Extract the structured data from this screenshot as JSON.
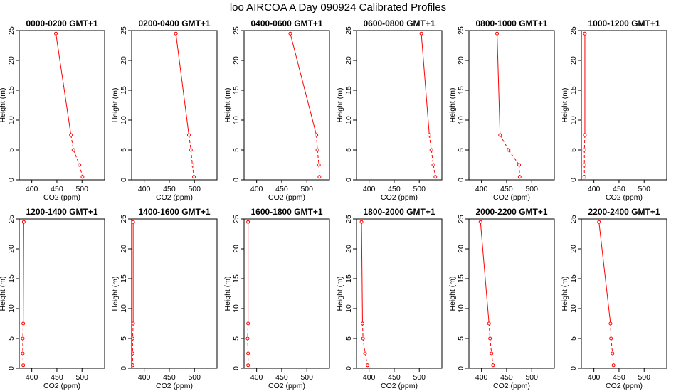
{
  "page_title": "loo AIRCOA A  Day 090924  Calibrated Profiles",
  "colors": {
    "series": "#ff0000",
    "axis": "#000000"
  },
  "chart_data": [
    {
      "type": "line",
      "title": "0000-0200 GMT+1",
      "xlabel": "CO2 (ppm)",
      "ylabel": "Height (m)",
      "xlim": [
        375,
        545
      ],
      "ylim": [
        0,
        25
      ],
      "xticks": [
        400,
        450,
        500
      ],
      "yticks": [
        0,
        5,
        10,
        15,
        20,
        25
      ],
      "points": [
        {
          "x": 448,
          "y": 24.5
        },
        {
          "x": 478,
          "y": 7.5
        },
        {
          "x": 483,
          "y": 5
        },
        {
          "x": 495,
          "y": 2.5
        },
        {
          "x": 501,
          "y": 0.5
        }
      ]
    },
    {
      "type": "line",
      "title": "0200-0400 GMT+1",
      "xlabel": "CO2 (ppm)",
      "ylabel": "Height (m)",
      "xlim": [
        375,
        545
      ],
      "ylim": [
        0,
        25
      ],
      "xticks": [
        400,
        450,
        500
      ],
      "yticks": [
        0,
        5,
        10,
        15,
        20,
        25
      ],
      "points": [
        {
          "x": 463,
          "y": 24.5
        },
        {
          "x": 489,
          "y": 7.5
        },
        {
          "x": 493,
          "y": 5
        },
        {
          "x": 496,
          "y": 2.5
        },
        {
          "x": 499,
          "y": 0.5
        }
      ]
    },
    {
      "type": "line",
      "title": "0400-0600 GMT+1",
      "xlabel": "CO2 (ppm)",
      "ylabel": "Height (m)",
      "xlim": [
        375,
        545
      ],
      "ylim": [
        0,
        25
      ],
      "xticks": [
        400,
        450,
        500
      ],
      "yticks": [
        0,
        5,
        10,
        15,
        20,
        25
      ],
      "points": [
        {
          "x": 467,
          "y": 24.5
        },
        {
          "x": 519,
          "y": 7.5
        },
        {
          "x": 521,
          "y": 5
        },
        {
          "x": 524,
          "y": 2.5
        },
        {
          "x": 525,
          "y": 0.5
        }
      ]
    },
    {
      "type": "line",
      "title": "0600-0800 GMT+1",
      "xlabel": "CO2 (ppm)",
      "ylabel": "Height (m)",
      "xlim": [
        375,
        545
      ],
      "ylim": [
        0,
        25
      ],
      "xticks": [
        400,
        450,
        500
      ],
      "yticks": [
        0,
        5,
        10,
        15,
        20,
        25
      ],
      "points": [
        {
          "x": 504,
          "y": 24.5
        },
        {
          "x": 520,
          "y": 7.5
        },
        {
          "x": 524,
          "y": 5
        },
        {
          "x": 528,
          "y": 2.5
        },
        {
          "x": 532,
          "y": 0.5
        }
      ]
    },
    {
      "type": "line",
      "title": "0800-1000 GMT+1",
      "xlabel": "CO2 (ppm)",
      "ylabel": "Height (m)",
      "xlim": [
        375,
        545
      ],
      "ylim": [
        0,
        25
      ],
      "xticks": [
        400,
        450,
        500
      ],
      "yticks": [
        0,
        5,
        10,
        15,
        20,
        25
      ],
      "points": [
        {
          "x": 431,
          "y": 24.5
        },
        {
          "x": 437,
          "y": 7.5
        },
        {
          "x": 454,
          "y": 5
        },
        {
          "x": 475,
          "y": 2.5
        },
        {
          "x": 476,
          "y": 0.5
        }
      ]
    },
    {
      "type": "line",
      "title": "1000-1200 GMT+1",
      "xlabel": "CO2 (ppm)",
      "ylabel": "Height (m)",
      "xlim": [
        375,
        545
      ],
      "ylim": [
        0,
        25
      ],
      "xticks": [
        400,
        450,
        500
      ],
      "yticks": [
        0,
        5,
        10,
        15,
        20,
        25
      ],
      "points": [
        {
          "x": 382,
          "y": 24.5
        },
        {
          "x": 382,
          "y": 7.5
        },
        {
          "x": 381,
          "y": 5
        },
        {
          "x": 381,
          "y": 2.5
        },
        {
          "x": 381,
          "y": 0.5
        }
      ]
    },
    {
      "type": "line",
      "title": "1200-1400 GMT+1",
      "xlabel": "CO2 (ppm)",
      "ylabel": "Height (m)",
      "xlim": [
        375,
        545
      ],
      "ylim": [
        0,
        25
      ],
      "xticks": [
        400,
        450,
        500
      ],
      "yticks": [
        0,
        5,
        10,
        15,
        20,
        25
      ],
      "points": [
        {
          "x": 384,
          "y": 24.5
        },
        {
          "x": 383,
          "y": 7.5
        },
        {
          "x": 382,
          "y": 5
        },
        {
          "x": 382,
          "y": 2.5
        },
        {
          "x": 383,
          "y": 0.5
        }
      ]
    },
    {
      "type": "line",
      "title": "1400-1600 GMT+1",
      "xlabel": "CO2 (ppm)",
      "ylabel": "Height (m)",
      "xlim": [
        375,
        545
      ],
      "ylim": [
        0,
        25
      ],
      "xticks": [
        400,
        450,
        500
      ],
      "yticks": [
        0,
        5,
        10,
        15,
        20,
        25
      ],
      "points": [
        {
          "x": 378,
          "y": 24.5
        },
        {
          "x": 378,
          "y": 7.5
        },
        {
          "x": 377,
          "y": 5
        },
        {
          "x": 377,
          "y": 2.5
        },
        {
          "x": 377,
          "y": 0.5
        }
      ]
    },
    {
      "type": "line",
      "title": "1600-1800 GMT+1",
      "xlabel": "CO2 (ppm)",
      "ylabel": "Height (m)",
      "xlim": [
        375,
        545
      ],
      "ylim": [
        0,
        25
      ],
      "xticks": [
        400,
        450,
        500
      ],
      "yticks": [
        0,
        5,
        10,
        15,
        20,
        25
      ],
      "points": [
        {
          "x": 383,
          "y": 24.5
        },
        {
          "x": 383,
          "y": 7.5
        },
        {
          "x": 382,
          "y": 5
        },
        {
          "x": 383,
          "y": 2.5
        },
        {
          "x": 383,
          "y": 0.5
        }
      ]
    },
    {
      "type": "line",
      "title": "1800-2000 GMT+1",
      "xlabel": "CO2 (ppm)",
      "ylabel": "Height (m)",
      "xlim": [
        375,
        545
      ],
      "ylim": [
        0,
        25
      ],
      "xticks": [
        400,
        450,
        500
      ],
      "yticks": [
        0,
        5,
        10,
        15,
        20,
        25
      ],
      "points": [
        {
          "x": 385,
          "y": 24.5
        },
        {
          "x": 387,
          "y": 7.5
        },
        {
          "x": 388,
          "y": 5
        },
        {
          "x": 392,
          "y": 2.5
        },
        {
          "x": 397,
          "y": 0.5
        }
      ]
    },
    {
      "type": "line",
      "title": "2000-2200 GMT+1",
      "xlabel": "CO2 (ppm)",
      "ylabel": "Height (m)",
      "xlim": [
        375,
        545
      ],
      "ylim": [
        0,
        25
      ],
      "xticks": [
        400,
        450,
        500
      ],
      "yticks": [
        0,
        5,
        10,
        15,
        20,
        25
      ],
      "points": [
        {
          "x": 398,
          "y": 24.5
        },
        {
          "x": 415,
          "y": 7.5
        },
        {
          "x": 417,
          "y": 5
        },
        {
          "x": 420,
          "y": 2.5
        },
        {
          "x": 423,
          "y": 0.5
        }
      ]
    },
    {
      "type": "line",
      "title": "2200-2400 GMT+1",
      "xlabel": "CO2 (ppm)",
      "ylabel": "Height (m)",
      "xlim": [
        375,
        545
      ],
      "ylim": [
        0,
        25
      ],
      "xticks": [
        400,
        450,
        500
      ],
      "yticks": [
        0,
        5,
        10,
        15,
        20,
        25
      ],
      "points": [
        {
          "x": 410,
          "y": 24.5
        },
        {
          "x": 433,
          "y": 7.5
        },
        {
          "x": 434,
          "y": 5
        },
        {
          "x": 437,
          "y": 2.5
        },
        {
          "x": 439,
          "y": 0.5
        }
      ]
    }
  ]
}
